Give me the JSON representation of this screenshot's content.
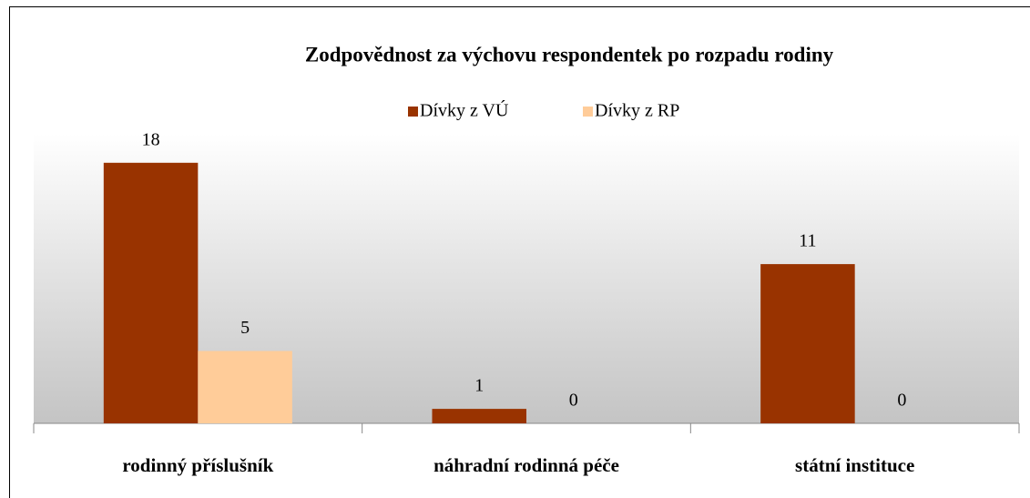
{
  "chart_data": {
    "type": "bar",
    "title": "Zodpovědnost za výchovu respondentek po rozpadu rodiny",
    "categories": [
      "rodinný příslušník",
      "náhradní rodinná péče",
      "státní instituce"
    ],
    "series": [
      {
        "name": "Dívky z VÚ",
        "color": "#993300",
        "values": [
          18,
          1,
          11
        ]
      },
      {
        "name": "Dívky z RP",
        "color": "#ffcc99",
        "values": [
          5,
          0,
          0
        ]
      }
    ],
    "ylim": [
      0,
      20
    ]
  }
}
